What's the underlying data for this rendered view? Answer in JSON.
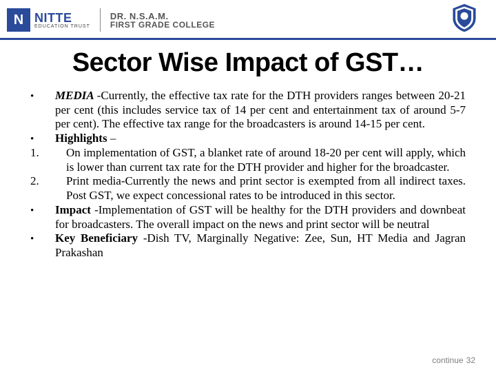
{
  "header": {
    "logo_letter": "N",
    "logo_main": "NITTE",
    "logo_sub": "EDUCATION TRUST",
    "college_main": "DR. N.S.A.M.",
    "college_sub": "FIRST GRADE COLLEGE"
  },
  "title": "Sector Wise Impact of GST…",
  "items": [
    {
      "marker": "•",
      "type": "bullet",
      "indent": false,
      "lead": "MEDIA ",
      "lead_style": "bi",
      "text": "-Currently, the effective tax rate for the DTH providers ranges between 20-21 per cent (this includes service tax of 14 per cent and entertainment tax of around 5-7 per cent). The effective tax range for the broadcasters is around 14-15 per cent."
    },
    {
      "marker": "•",
      "type": "bullet",
      "indent": false,
      "lead": "Highlights ",
      "lead_style": "b",
      "text": "–"
    },
    {
      "marker": "1.",
      "type": "num",
      "indent": true,
      "lead": "",
      "lead_style": "",
      "text": "On implementation of GST, a blanket rate of around 18-20 per cent will apply, which is lower than current tax rate for the DTH provider and higher for the broadcaster."
    },
    {
      "marker": "2.",
      "type": "num",
      "indent": true,
      "lead": "",
      "lead_style": "",
      "text": "Print media-Currently the news and print sector is exempted from all indirect taxes. Post GST, we expect concessional rates to be introduced in this sector."
    },
    {
      "marker": "•",
      "type": "bullet",
      "indent": false,
      "lead": "Impact ",
      "lead_style": "b",
      "text": "-Implementation of GST will be healthy for the DTH providers and downbeat for broadcasters. The overall impact on the news and print sector will be neutral"
    },
    {
      "marker": "•",
      "type": "bullet",
      "indent": false,
      "lead": "Key Beneficiary ",
      "lead_style": "b",
      "text": "-Dish TV, Marginally Negative: Zee, Sun, HT Media and Jagran  Prakashan"
    }
  ],
  "footer": {
    "label": "continue",
    "page": "32"
  },
  "colors": {
    "brand": "#2a4a9a",
    "underline": "#2a4a9a",
    "footer_text": "#808080",
    "text": "#000000",
    "background": "#ffffff"
  }
}
